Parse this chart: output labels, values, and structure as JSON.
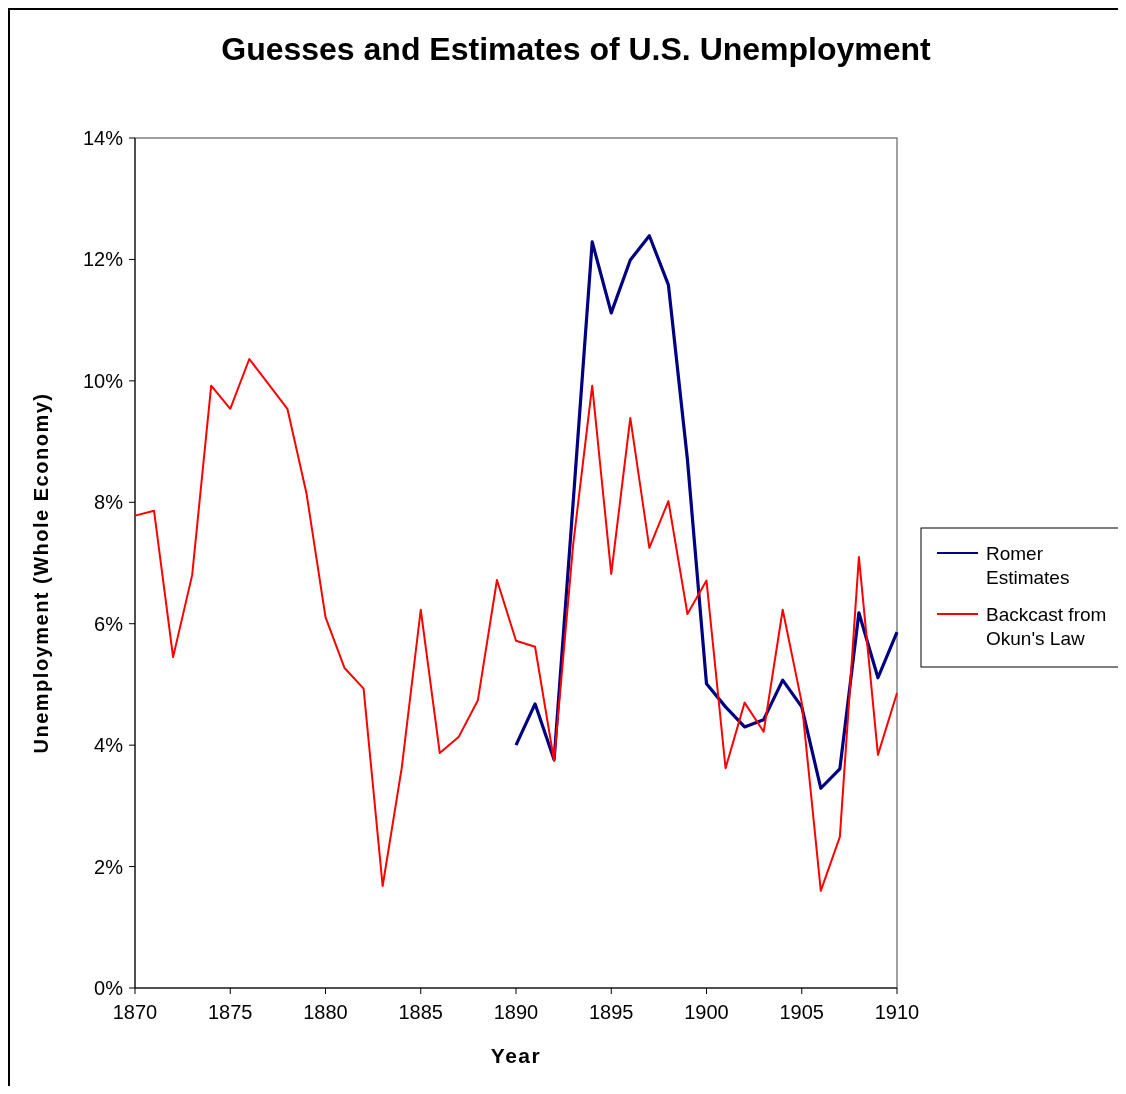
{
  "chart_data": {
    "type": "line",
    "title": "Guesses and Estimates of U.S. Unemployment",
    "xlabel": "Year",
    "ylabel": "Unemployment (Whole Economy)",
    "x": [
      1870,
      1871,
      1872,
      1873,
      1874,
      1875,
      1876,
      1877,
      1878,
      1879,
      1880,
      1881,
      1882,
      1883,
      1884,
      1885,
      1886,
      1887,
      1888,
      1889,
      1890,
      1891,
      1892,
      1893,
      1894,
      1895,
      1896,
      1897,
      1898,
      1899,
      1900,
      1901,
      1902,
      1903,
      1904,
      1905,
      1906,
      1907,
      1908,
      1909,
      1910
    ],
    "series": [
      {
        "name": "Romer Estimates",
        "color": "#000080",
        "values": [
          null,
          null,
          null,
          null,
          null,
          null,
          null,
          null,
          null,
          null,
          null,
          null,
          null,
          null,
          null,
          null,
          null,
          null,
          null,
          null,
          4.0,
          4.68,
          3.76,
          8.0,
          12.29,
          11.12,
          11.99,
          12.39,
          11.58,
          8.7,
          5.01,
          4.63,
          4.3,
          4.42,
          5.07,
          4.63,
          3.29,
          3.61,
          6.18,
          5.11,
          5.86
        ]
      },
      {
        "name": "Backcast from Okun's Law",
        "color": "#ff0000",
        "values": [
          7.78,
          7.86,
          5.45,
          6.8,
          9.92,
          9.54,
          10.36,
          9.95,
          9.54,
          8.15,
          6.11,
          5.27,
          4.93,
          1.68,
          3.62,
          6.23,
          3.87,
          4.14,
          4.74,
          6.72,
          5.72,
          5.62,
          3.74,
          7.3,
          9.92,
          6.82,
          9.39,
          7.25,
          8.02,
          6.16,
          6.71,
          3.62,
          4.7,
          4.22,
          6.23,
          4.7,
          1.6,
          2.49,
          7.1,
          3.84,
          4.86
        ]
      }
    ],
    "xlim": [
      1870,
      1910
    ],
    "xticks": [
      1870,
      1875,
      1880,
      1885,
      1890,
      1895,
      1900,
      1905,
      1910
    ],
    "ylim": [
      0,
      14
    ],
    "yticks": [
      {
        "value": 0,
        "label": "0%"
      },
      {
        "value": 2,
        "label": "2%"
      },
      {
        "value": 4,
        "label": "4%"
      },
      {
        "value": 6,
        "label": "6%"
      },
      {
        "value": 8,
        "label": "8%"
      },
      {
        "value": 10,
        "label": "10%"
      },
      {
        "value": 12,
        "label": "12%"
      },
      {
        "value": 14,
        "label": "14%"
      }
    ],
    "grid": false,
    "legend": "right",
    "marker": "none",
    "line_style": "solid"
  }
}
